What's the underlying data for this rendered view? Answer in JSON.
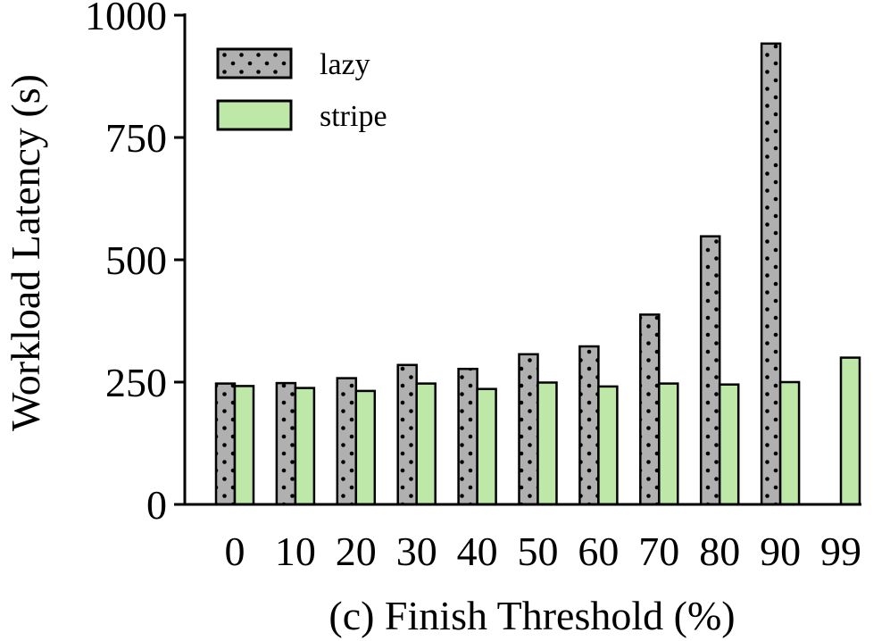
{
  "chart_data": {
    "type": "bar",
    "xlabel": "(c) Finish Threshold (%)",
    "ylabel": "Workload Latency (s)",
    "categories": [
      "0",
      "10",
      "20",
      "30",
      "40",
      "50",
      "60",
      "70",
      "80",
      "90",
      "99"
    ],
    "ylim": [
      0,
      1000
    ],
    "yticks": [
      "0",
      "250",
      "500",
      "750",
      "1000"
    ],
    "grid": false,
    "legend_position": "top-left",
    "series": [
      {
        "name": "lazy",
        "pattern": "dotted",
        "color": "#b0b0b0",
        "values": [
          247,
          248,
          258,
          285,
          277,
          307,
          323,
          388,
          548,
          942,
          null
        ]
      },
      {
        "name": "stripe",
        "pattern": "solid",
        "color": "#bde8a8",
        "values": [
          242,
          238,
          232,
          247,
          236,
          249,
          241,
          247,
          245,
          250,
          300
        ]
      }
    ]
  }
}
